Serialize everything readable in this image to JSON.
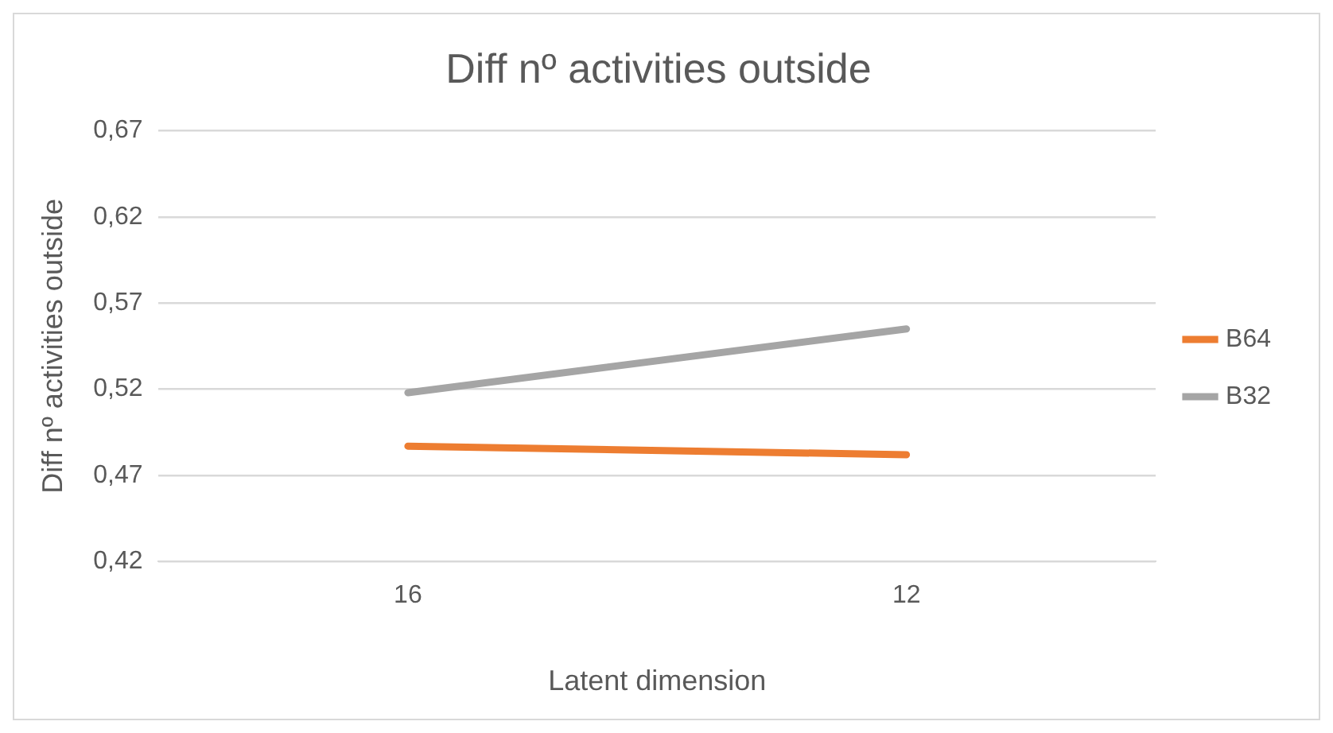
{
  "chart_data": {
    "type": "line",
    "title": "Diff nº activities outside",
    "xlabel": "Latent dimension",
    "ylabel": "Diff nº activities outside",
    "categories": [
      "16",
      "12"
    ],
    "series": [
      {
        "name": "B64",
        "color": "#ed7d31",
        "values": [
          0.487,
          0.482
        ]
      },
      {
        "name": "B32",
        "color": "#a5a5a5",
        "values": [
          0.518,
          0.555
        ]
      }
    ],
    "ylim": [
      0.42,
      0.67
    ],
    "yticks": [
      {
        "value": 0.42,
        "label": "0,42"
      },
      {
        "value": 0.47,
        "label": "0,47"
      },
      {
        "value": 0.52,
        "label": "0,52"
      },
      {
        "value": 0.57,
        "label": "0,57"
      },
      {
        "value": 0.62,
        "label": "0,62"
      },
      {
        "value": 0.67,
        "label": "0,67"
      }
    ],
    "grid": "y",
    "legend": "right",
    "marker": "none",
    "line_style": "solid"
  }
}
